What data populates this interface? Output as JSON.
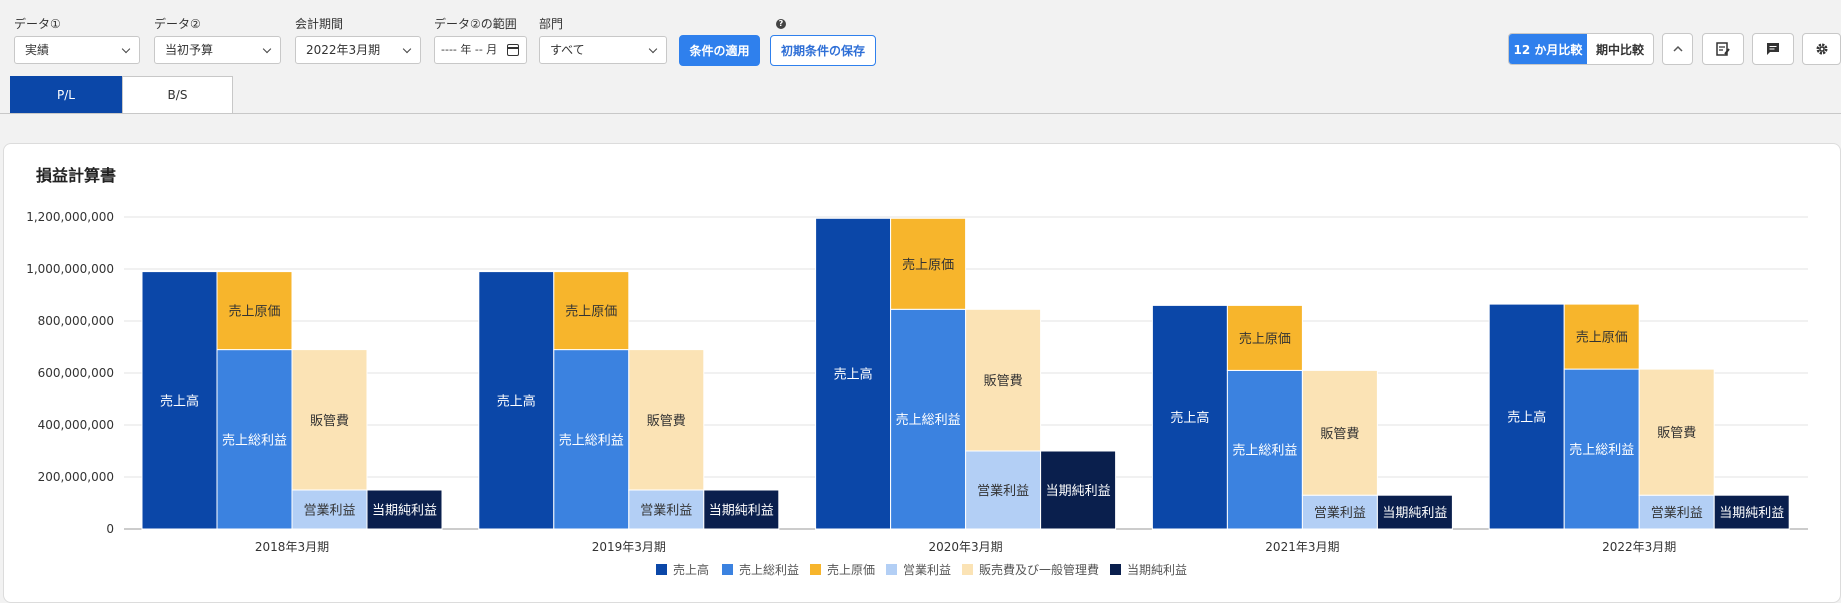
{
  "filters": {
    "data1": {
      "label": "データ①",
      "value": "実績"
    },
    "data2": {
      "label": "データ②",
      "value": "当初予算"
    },
    "period": {
      "label": "会計期間",
      "value": "2022年3月期"
    },
    "range": {
      "label": "データ②の範囲",
      "value": "---- 年 -- 月"
    },
    "department": {
      "label": "部門",
      "value": "すべて"
    }
  },
  "buttons": {
    "apply": "条件の適用",
    "save": "初期条件の保存"
  },
  "compare": {
    "twelve": "12 か月比較",
    "mid": "期中比較"
  },
  "tabs": [
    {
      "label": "P/L"
    },
    {
      "label": "B/S"
    }
  ],
  "card": {
    "title": "損益計算書"
  },
  "chart_data": {
    "type": "bar",
    "categories": [
      "2018年3月期",
      "2019年3月期",
      "2020年3月期",
      "2021年3月期",
      "2022年3月期"
    ],
    "ylim": [
      0,
      1200000000
    ],
    "yticks": [
      "0",
      "200,000,000",
      "400,000,000",
      "600,000,000",
      "800,000,000",
      "1,000,000,000",
      "1,200,000,000"
    ],
    "grid": true,
    "legend_position": "bottom",
    "colors": {
      "revenue": "#0b47a8",
      "gross": "#3b82e0",
      "cogs": "#f7b52c",
      "operating": "#b3cff5",
      "sga": "#fbe3b5",
      "net": "#0a1f4d"
    },
    "series": [
      {
        "name": "売上高",
        "values": [
          990000000,
          990000000,
          1195000000,
          860000000,
          865000000
        ]
      },
      {
        "name": "売上総利益",
        "values": [
          690000000,
          690000000,
          845000000,
          610000000,
          615000000
        ]
      },
      {
        "name": "売上原価",
        "values": [
          300000000,
          300000000,
          350000000,
          250000000,
          250000000
        ]
      },
      {
        "name": "営業利益",
        "values": [
          150000000,
          150000000,
          300000000,
          130000000,
          130000000
        ]
      },
      {
        "name": "販売費及び一般管理費",
        "values": [
          540000000,
          540000000,
          545000000,
          480000000,
          485000000
        ]
      },
      {
        "name": "当期純利益",
        "values": [
          150000000,
          150000000,
          300000000,
          130000000,
          130000000
        ]
      }
    ],
    "bar_labels": {
      "revenue": "売上高",
      "gross": "売上総利益",
      "cogs": "売上原価",
      "sga": "販管費",
      "operating": "営業利益",
      "net": "当期純利益"
    }
  }
}
